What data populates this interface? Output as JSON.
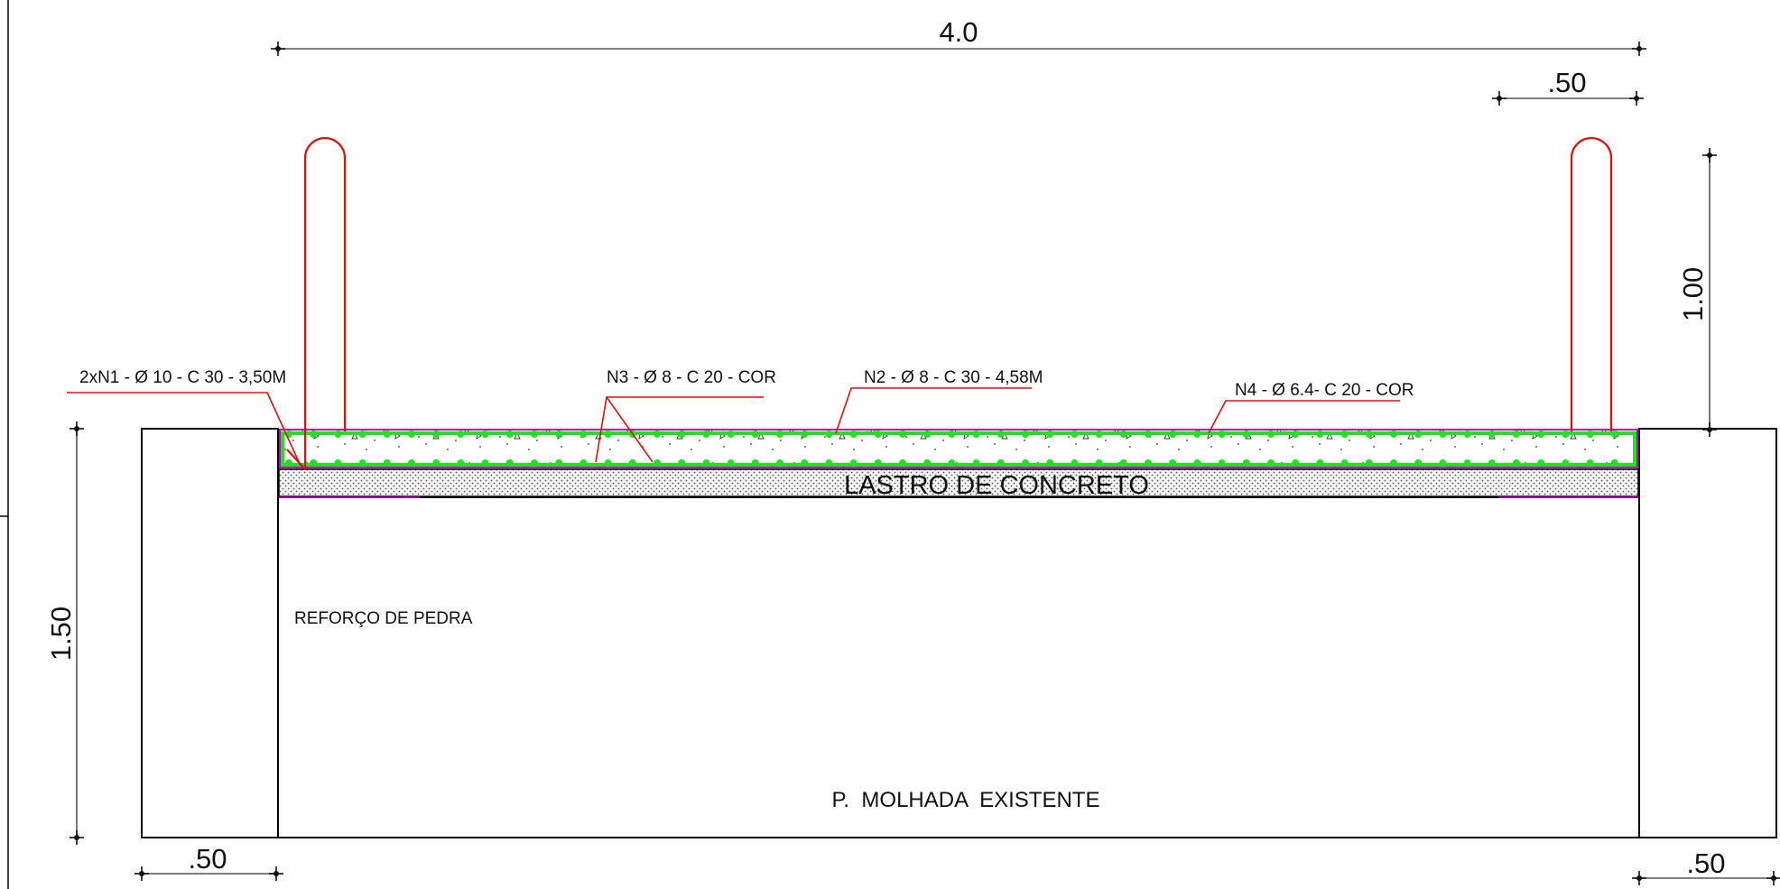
{
  "dimensions": {
    "top_width": "4.0",
    "top_right": ".50",
    "right_height": "1.00",
    "left_height": "1.50",
    "bottom_left": ".50",
    "bottom_right": ".50"
  },
  "labels": {
    "rebar_n1": "2xN1 - Ø 10 - C 30 - 3,50M",
    "rebar_n3": "N3 - Ø 8 - C 20 - COR",
    "rebar_n2": "N2 - Ø 8 - C 30 - 4,58M",
    "rebar_n4": "N4 - Ø 6.4- C 20 - COR",
    "lastro": "LASTRO DE CONCRETO",
    "reforco": "REFORÇO DE PEDRA",
    "existente": "P.  MOLHADA  EXISTENTE"
  },
  "colors": {
    "rebar": "#e01010",
    "stirrup": "#22e022",
    "slab_edge": "#c000c0",
    "dimension_line": "#555555",
    "outline": "#000000"
  }
}
